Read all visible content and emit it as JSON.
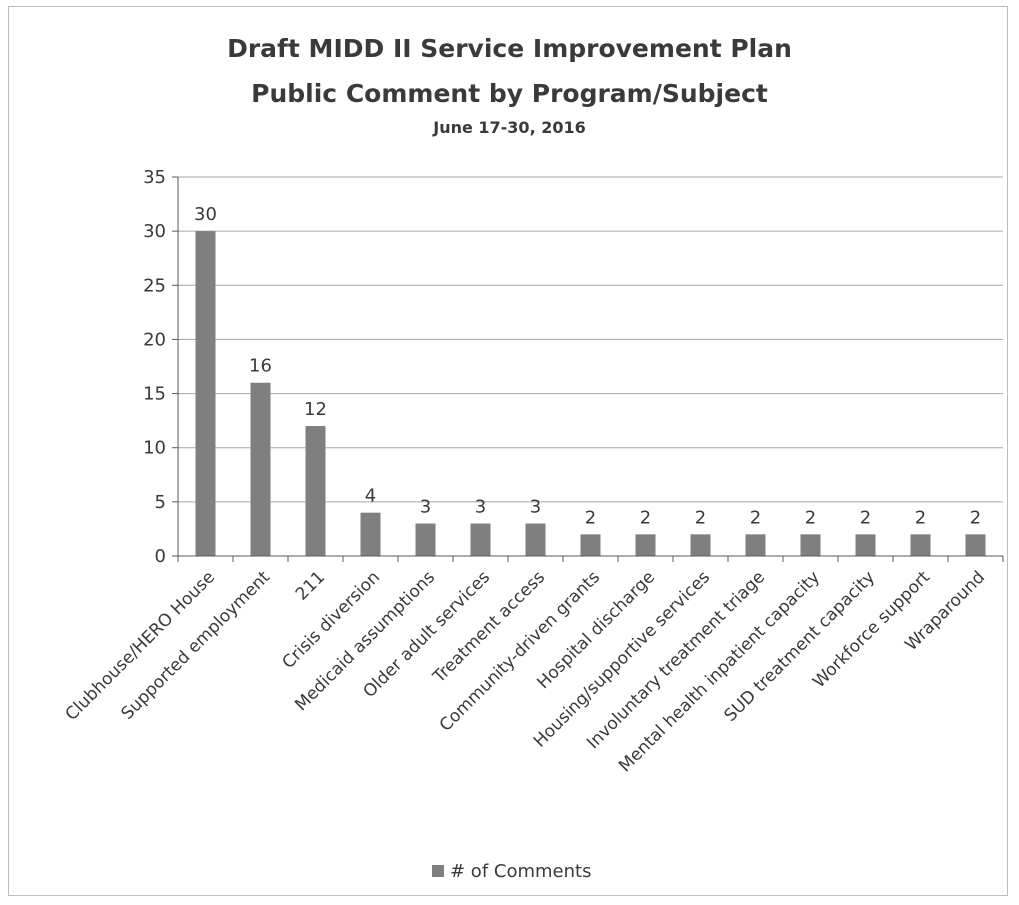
{
  "chart_data": {
    "type": "bar",
    "title": "Draft MIDD II Service Improvement Plan",
    "title_line2": "Public Comment by Program/Subject",
    "subtitle": "June 17-30, 2016",
    "xlabel": "",
    "ylabel": "",
    "categories": [
      "Clubhouse/HERO House",
      "Supported employment",
      "211",
      "Crisis diversion",
      "Medicaid assumptions",
      "Older adult services",
      "Treatment access",
      "Community-driven grants",
      "Hospital discharge",
      "Housing/supportive services",
      "Involuntary treatment triage",
      "Mental health inpatient capacity",
      "SUD treatment capacity",
      "Workforce support",
      "Wraparound"
    ],
    "series": [
      {
        "name": "# of Comments",
        "values": [
          30,
          16,
          12,
          4,
          3,
          3,
          3,
          2,
          2,
          2,
          2,
          2,
          2,
          2,
          2
        ]
      }
    ],
    "ylim": [
      0,
      35
    ],
    "yticks": [
      0,
      5,
      10,
      15,
      20,
      25,
      30,
      35
    ],
    "grid": true,
    "legend_position": "bottom",
    "colors": {
      "bar": "#7f7f7f",
      "grid": "#a6a6a6",
      "axis": "#595959"
    }
  }
}
